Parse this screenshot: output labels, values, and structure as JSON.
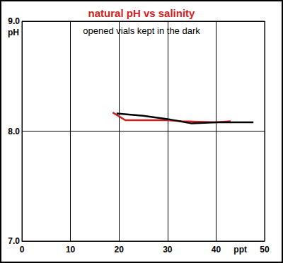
{
  "chart_data": {
    "type": "line",
    "title": "natural pH vs salinity",
    "subtitle": "opened vials kept in the dark",
    "xlabel": "ppt",
    "ylabel": "pH",
    "xlim": [
      0,
      50
    ],
    "xticks": [
      0,
      10,
      20,
      30,
      40,
      50
    ],
    "ylim": [
      7,
      9
    ],
    "yticks": [
      {
        "value": 7,
        "label": "7.0"
      },
      {
        "value": 8,
        "label": "8.0"
      },
      {
        "value": 9,
        "label": "9.0"
      }
    ],
    "grid": true,
    "series": [
      {
        "color": "#d42020",
        "x": [
          18.7,
          21.3,
          30,
          33,
          40,
          43
        ],
        "values": [
          8.17,
          8.1,
          8.1,
          8.09,
          8.08,
          8.09
        ]
      },
      {
        "color": "#000000",
        "x": [
          19.5,
          25,
          30,
          35,
          40,
          47.7
        ],
        "values": [
          8.16,
          8.14,
          8.11,
          8.07,
          8.08,
          8.08
        ]
      }
    ]
  }
}
